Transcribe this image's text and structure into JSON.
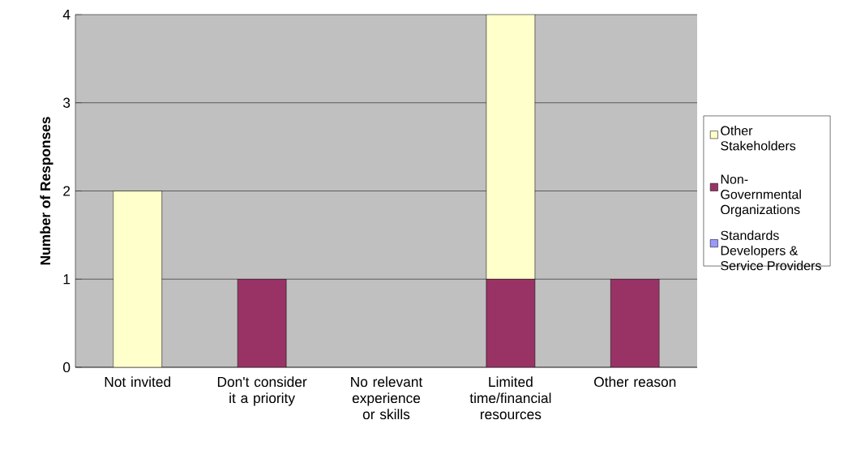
{
  "chart_data": {
    "type": "bar",
    "stacked": true,
    "ylabel": "Number of Responses",
    "categories": [
      "Not invited",
      "Don't consider it a priority",
      "No relevant experience or skills",
      "Limited time/financial resources",
      "Other reason"
    ],
    "series": [
      {
        "name": "Standards Developers & Service Providers",
        "color": "#9999ff",
        "values": [
          0,
          0,
          0,
          0,
          0
        ]
      },
      {
        "name": "Non-Governmental Organizations",
        "color": "#993366",
        "values": [
          0,
          1,
          0,
          1,
          1
        ]
      },
      {
        "name": "Other Stakeholders",
        "color": "#ffffcc",
        "values": [
          2,
          0,
          0,
          3,
          0
        ]
      }
    ],
    "ylim": [
      0,
      4
    ],
    "yticks": [
      0,
      1,
      2,
      3,
      4
    ],
    "grid": "y",
    "legend": "right"
  }
}
